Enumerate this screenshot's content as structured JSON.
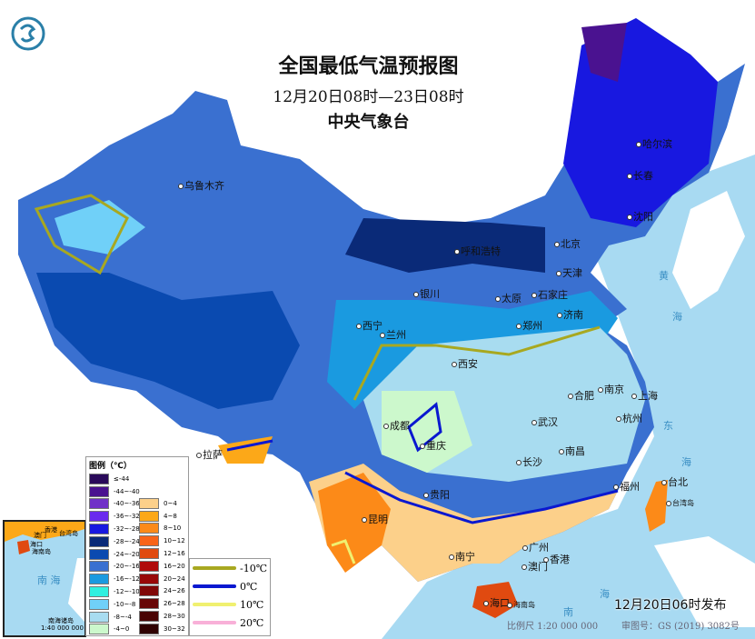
{
  "title": "全国最低气温预报图",
  "period": "12月20日08时—23日08时",
  "issuer": "中央气象台",
  "logo_icon": "cma-logo",
  "cities": [
    "乌鲁木齐",
    "哈尔滨",
    "长春",
    "沈阳",
    "北京",
    "天津",
    "呼和浩特",
    "银川",
    "太原",
    "石家庄",
    "济南",
    "西宁",
    "兰州",
    "西安",
    "郑州",
    "合肥",
    "南京",
    "上海",
    "武汉",
    "杭州",
    "成都",
    "重庆",
    "拉萨",
    "长沙",
    "南昌",
    "福州",
    "台北",
    "贵阳",
    "昆明",
    "南宁",
    "广州",
    "香港",
    "澳门",
    "海口"
  ],
  "islands": [
    "台湾岛",
    "海南岛"
  ],
  "seas": [
    "黄",
    "海",
    "东",
    "海",
    "南",
    "海"
  ],
  "legend": {
    "title": "图例（℃）",
    "cold": [
      {
        "label": "≤-44",
        "color": "#2a0a5a"
      },
      {
        "label": "-44~-40",
        "color": "#4a1290"
      },
      {
        "label": "-40~-36",
        "color": "#7030c8"
      },
      {
        "label": "-36~-32",
        "color": "#6a2aee"
      },
      {
        "label": "-32~-28",
        "color": "#1818e0"
      },
      {
        "label": "-28~-24",
        "color": "#0a2a78"
      },
      {
        "label": "-24~-20",
        "color": "#0a4ab0"
      },
      {
        "label": "-20~-16",
        "color": "#3a70d0"
      },
      {
        "label": "-16~-12",
        "color": "#1a9ae0"
      },
      {
        "label": "-12~-10",
        "color": "#30f0e0"
      },
      {
        "label": "-10~-8",
        "color": "#70d0f8"
      },
      {
        "label": "-8~-4",
        "color": "#a8dcf0"
      },
      {
        "label": "-4~0",
        "color": "#ccf8cc"
      }
    ],
    "warm": [
      {
        "label": "0~4",
        "color": "#fcd08a"
      },
      {
        "label": "4~8",
        "color": "#fca818"
      },
      {
        "label": "8~10",
        "color": "#fc8a18"
      },
      {
        "label": "10~12",
        "color": "#f86418"
      },
      {
        "label": "12~16",
        "color": "#e04a10"
      },
      {
        "label": "16~20",
        "color": "#b00a0a"
      },
      {
        "label": "20~24",
        "color": "#980808"
      },
      {
        "label": "24~26",
        "color": "#800808"
      },
      {
        "label": "26~28",
        "color": "#680606"
      },
      {
        "label": "28~30",
        "color": "#4a0404"
      },
      {
        "label": "30~32",
        "color": "#300202"
      }
    ],
    "isolines": [
      {
        "label": "-10℃",
        "color": "#a8a820"
      },
      {
        "label": "0℃",
        "color": "#0a18d0"
      },
      {
        "label": "10℃",
        "color": "#f0f070"
      },
      {
        "label": "20℃",
        "color": "#f8b0d8"
      }
    ]
  },
  "inset": {
    "title": "南海诸岛",
    "scale": "1:40 000 000",
    "sea": "南 海",
    "labels": [
      "香港",
      "澳门",
      "台湾岛",
      "海口",
      "海南岛"
    ]
  },
  "published": "12月20日06时发布",
  "scale": "比例尺 1:20 000 000",
  "review_no": "审图号：GS (2019) 3082号"
}
